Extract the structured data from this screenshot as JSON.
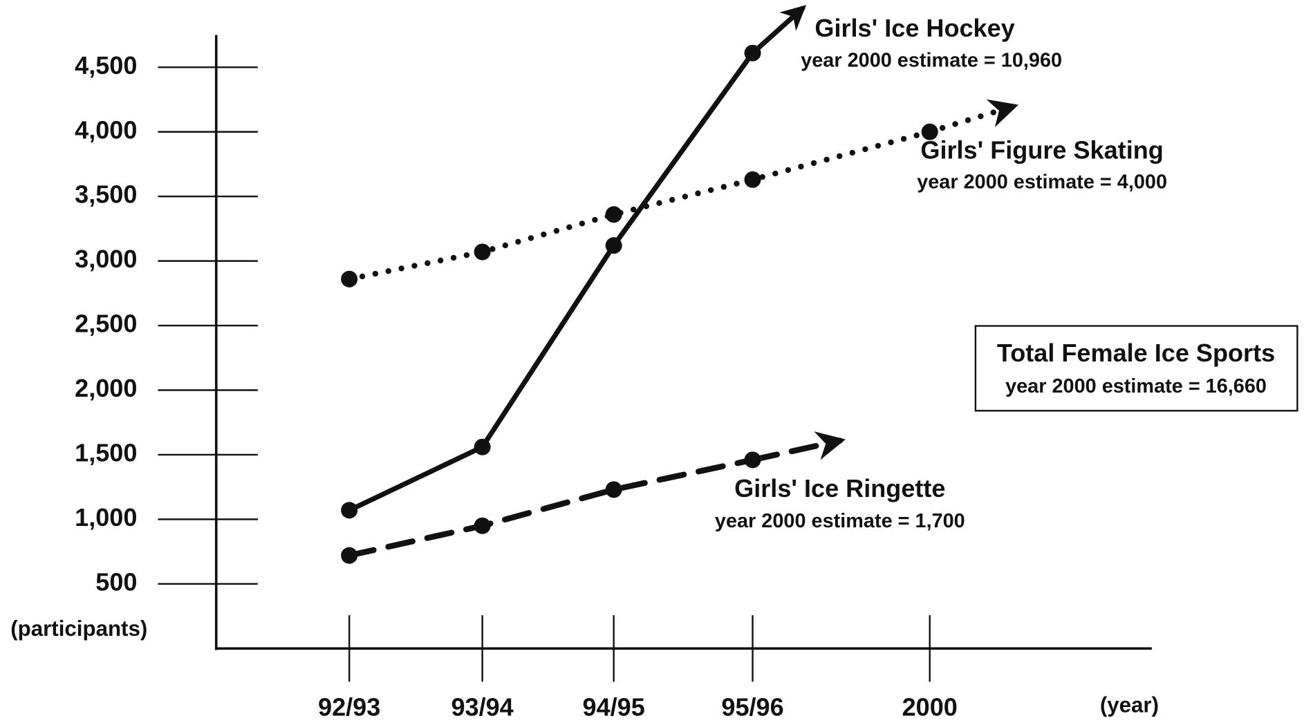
{
  "chart_data": {
    "type": "line",
    "categories": [
      "92/93",
      "93/94",
      "94/95",
      "95/96",
      "2000"
    ],
    "x_label": "(year)",
    "y_label": "(participants)",
    "ylim": [
      0,
      4750
    ],
    "yticks": [
      500,
      {
        "value": 1000,
        "label": "1,000"
      },
      {
        "value": 1500,
        "label": "1,500"
      },
      {
        "value": 2000,
        "label": "2,000"
      },
      {
        "value": 2500,
        "label": "2,500"
      },
      {
        "value": 3000,
        "label": "3,000"
      },
      {
        "value": 3500,
        "label": "3,500"
      },
      {
        "value": 4000,
        "label": "4,000"
      },
      {
        "value": 4500,
        "label": "4,500"
      }
    ],
    "series": [
      {
        "name": "Girls' Ice Hockey",
        "color": "#111111",
        "line_style": "solid",
        "values": [
          1070,
          1560,
          3120,
          4610,
          null
        ]
      },
      {
        "name": "Girls' Figure Skating",
        "color": "#111111",
        "line_style": "dotted",
        "values": [
          2860,
          3070,
          3360,
          3630,
          4000
        ]
      },
      {
        "name": "Girls' Ice Ringette",
        "color": "#111111",
        "line_style": "dashed",
        "values": [
          720,
          950,
          1230,
          1460,
          null
        ]
      }
    ],
    "annotations": [
      "year 2000 estimate = 10,960",
      "year 2000 estimate = 4,000",
      "year 2000 estimate = 1,700"
    ],
    "box": {
      "title": "Total Female Ice Sports",
      "note": "year 2000 estimate = 16,660"
    }
  }
}
